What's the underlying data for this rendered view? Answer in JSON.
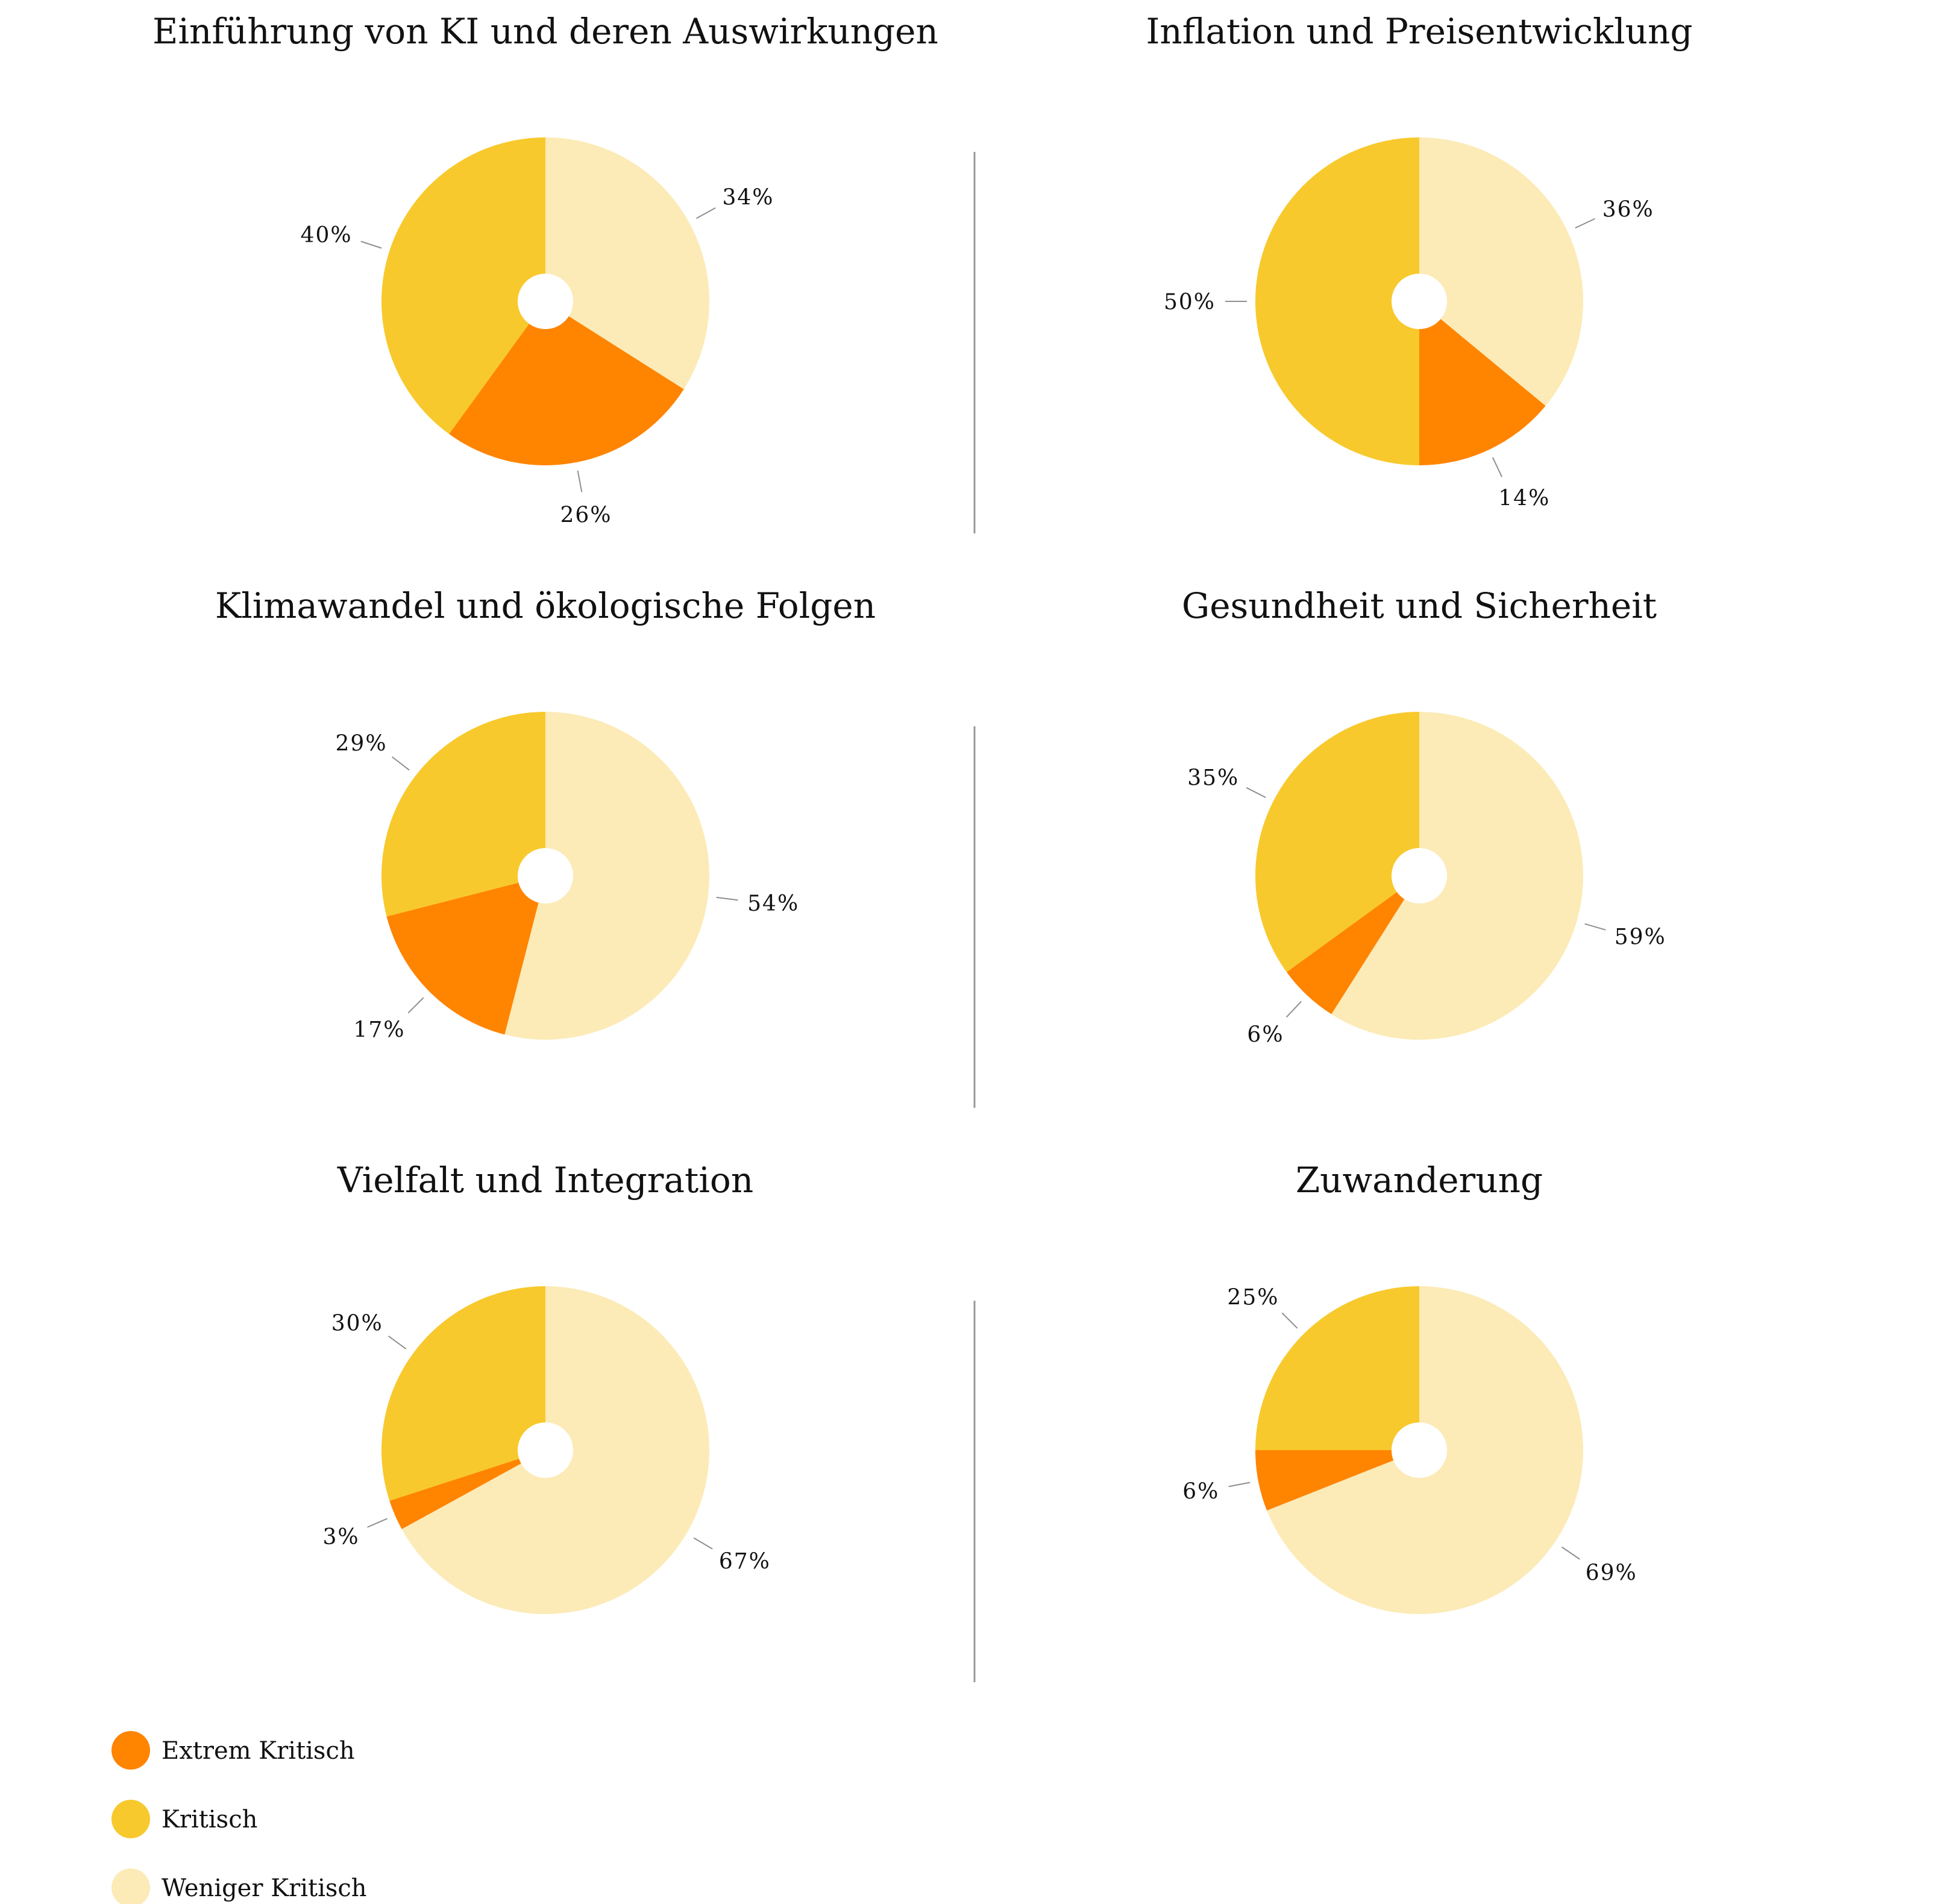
{
  "legend": [
    {
      "label": "Extrem Kritisch",
      "color": "#FF8400"
    },
    {
      "label": "Kritisch",
      "color": "#F8C92C"
    },
    {
      "label": "Weniger Kritisch",
      "color": "#FCEBB7"
    }
  ],
  "chart_data": [
    {
      "type": "pie",
      "title": "Einführung von KI und deren Auswirkungen",
      "slices": [
        {
          "name": "Extrem Kritisch",
          "value": 26,
          "label": "26%"
        },
        {
          "name": "Kritisch",
          "value": 40,
          "label": "40%"
        },
        {
          "name": "Weniger Kritisch",
          "value": 34,
          "label": "34%"
        }
      ]
    },
    {
      "type": "pie",
      "title": "Inflation und Preisentwicklung",
      "slices": [
        {
          "name": "Extrem Kritisch",
          "value": 14,
          "label": "14%"
        },
        {
          "name": "Kritisch",
          "value": 50,
          "label": "50%"
        },
        {
          "name": "Weniger Kritisch",
          "value": 36,
          "label": "36%"
        }
      ]
    },
    {
      "type": "pie",
      "title": "Klimawandel und ökologische Folgen",
      "slices": [
        {
          "name": "Extrem Kritisch",
          "value": 17,
          "label": "17%"
        },
        {
          "name": "Kritisch",
          "value": 29,
          "label": "29%"
        },
        {
          "name": "Weniger Kritisch",
          "value": 54,
          "label": "54%"
        }
      ]
    },
    {
      "type": "pie",
      "title": "Gesundheit und Sicherheit",
      "slices": [
        {
          "name": "Extrem Kritisch",
          "value": 6,
          "label": "6%"
        },
        {
          "name": "Kritisch",
          "value": 35,
          "label": "35%"
        },
        {
          "name": "Weniger Kritisch",
          "value": 59,
          "label": "59%"
        }
      ]
    },
    {
      "type": "pie",
      "title": "Vielfalt und Integration",
      "slices": [
        {
          "name": "Extrem Kritisch",
          "value": 3,
          "label": "3%"
        },
        {
          "name": "Kritisch",
          "value": 30,
          "label": "30%"
        },
        {
          "name": "Weniger Kritisch",
          "value": 67,
          "label": "67%"
        }
      ]
    },
    {
      "type": "pie",
      "title": "Zuwanderung",
      "slices": [
        {
          "name": "Extrem Kritisch",
          "value": 6,
          "label": "6%"
        },
        {
          "name": "Kritisch",
          "value": 25,
          "label": "25%"
        },
        {
          "name": "Weniger Kritisch",
          "value": 69,
          "label": "69%"
        }
      ]
    }
  ]
}
